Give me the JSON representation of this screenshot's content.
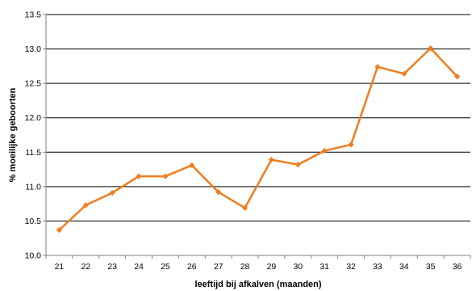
{
  "chart_data": {
    "type": "line",
    "title": "",
    "xlabel": "leeftijd bij afkalven (maanden)",
    "ylabel": "% moeilijke geboorten",
    "categories": [
      "21",
      "22",
      "23",
      "24",
      "25",
      "26",
      "27",
      "28",
      "29",
      "30",
      "31",
      "32",
      "33",
      "34",
      "35",
      "36"
    ],
    "series": [
      {
        "values": [
          10.37,
          10.73,
          10.91,
          11.15,
          11.15,
          11.31,
          10.92,
          10.69,
          11.39,
          11.32,
          11.52,
          11.61,
          12.74,
          12.64,
          13.01,
          12.6
        ]
      }
    ],
    "ylim": [
      10.0,
      13.5
    ],
    "yticks": [
      "10.0",
      "10.5",
      "11.0",
      "11.5",
      "12.0",
      "12.5",
      "13.0",
      "13.5"
    ],
    "grid": "horizontal",
    "legend": "none",
    "colors": {
      "series": "#F07D1E",
      "grid": "#000000",
      "axis": "#808080"
    }
  }
}
